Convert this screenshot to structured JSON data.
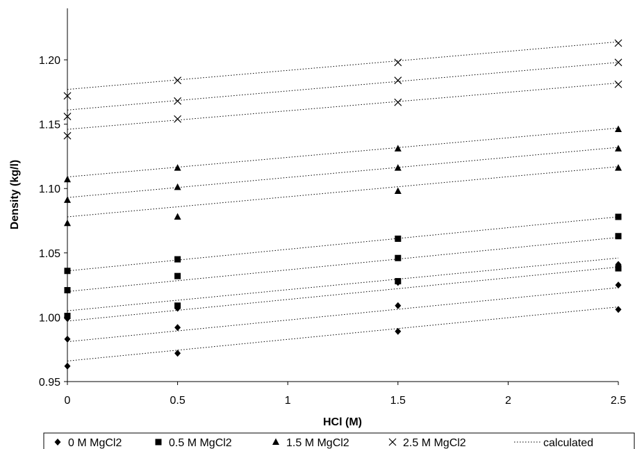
{
  "chart_data": {
    "type": "scatter",
    "title": "",
    "xlabel": "HCl (M)",
    "ylabel": "Density (kg/l)",
    "xlim": [
      0,
      2.5
    ],
    "ylim": [
      0.95,
      1.24
    ],
    "x_ticks": [
      "0",
      "0.5",
      "1",
      "1.5",
      "2",
      "2.5"
    ],
    "y_ticks": [
      "0.95",
      "1.00",
      "1.05",
      "1.10",
      "1.15",
      "1.20"
    ],
    "grid": false,
    "legend_position": "bottom",
    "series": [
      {
        "name": "0 M MgCl2",
        "marker": "diamond",
        "points": [
          [
            0,
            0.962
          ],
          [
            0,
            0.983
          ],
          [
            0,
            0.999
          ],
          [
            0.5,
            0.972
          ],
          [
            0.5,
            0.992
          ],
          [
            0.5,
            1.007
          ],
          [
            1.5,
            0.989
          ],
          [
            1.5,
            1.009
          ],
          [
            1.5,
            1.027
          ],
          [
            2.5,
            1.006
          ],
          [
            2.5,
            1.025
          ],
          [
            2.5,
            1.041
          ]
        ]
      },
      {
        "name": "0.5 M MgCl2",
        "marker": "square",
        "points": [
          [
            0,
            1.001
          ],
          [
            0,
            1.021
          ],
          [
            0,
            1.036
          ],
          [
            0.5,
            1.009
          ],
          [
            0.5,
            1.032
          ],
          [
            0.5,
            1.045
          ],
          [
            1.5,
            1.028
          ],
          [
            1.5,
            1.046
          ],
          [
            1.5,
            1.061
          ],
          [
            2.5,
            1.038
          ],
          [
            2.5,
            1.063
          ],
          [
            2.5,
            1.078
          ]
        ]
      },
      {
        "name": "1.5 M MgCl2",
        "marker": "triangle",
        "points": [
          [
            0,
            1.073
          ],
          [
            0,
            1.091
          ],
          [
            0,
            1.107
          ],
          [
            0.5,
            1.078
          ],
          [
            0.5,
            1.101
          ],
          [
            0.5,
            1.116
          ],
          [
            1.5,
            1.098
          ],
          [
            1.5,
            1.116
          ],
          [
            1.5,
            1.131
          ],
          [
            2.5,
            1.116
          ],
          [
            2.5,
            1.131
          ],
          [
            2.5,
            1.146
          ]
        ]
      },
      {
        "name": "2.5 M MgCl2",
        "marker": "x",
        "points": [
          [
            0,
            1.141
          ],
          [
            0,
            1.156
          ],
          [
            0,
            1.172
          ],
          [
            0.5,
            1.154
          ],
          [
            0.5,
            1.168
          ],
          [
            0.5,
            1.184
          ],
          [
            1.5,
            1.167
          ],
          [
            1.5,
            1.184
          ],
          [
            1.5,
            1.198
          ],
          [
            2.5,
            1.181
          ],
          [
            2.5,
            1.198
          ],
          [
            2.5,
            1.213
          ]
        ]
      }
    ],
    "calculated": {
      "name": "calculated",
      "style": "dotted",
      "lines": [
        [
          0.966,
          1.008
        ],
        [
          0.981,
          1.023
        ],
        [
          0.997,
          1.039
        ],
        [
          1.005,
          1.046
        ],
        [
          1.02,
          1.062
        ],
        [
          1.036,
          1.078
        ],
        [
          1.078,
          1.117
        ],
        [
          1.093,
          1.132
        ],
        [
          1.109,
          1.147
        ],
        [
          1.146,
          1.182
        ],
        [
          1.161,
          1.198
        ],
        [
          1.177,
          1.214
        ]
      ]
    }
  }
}
